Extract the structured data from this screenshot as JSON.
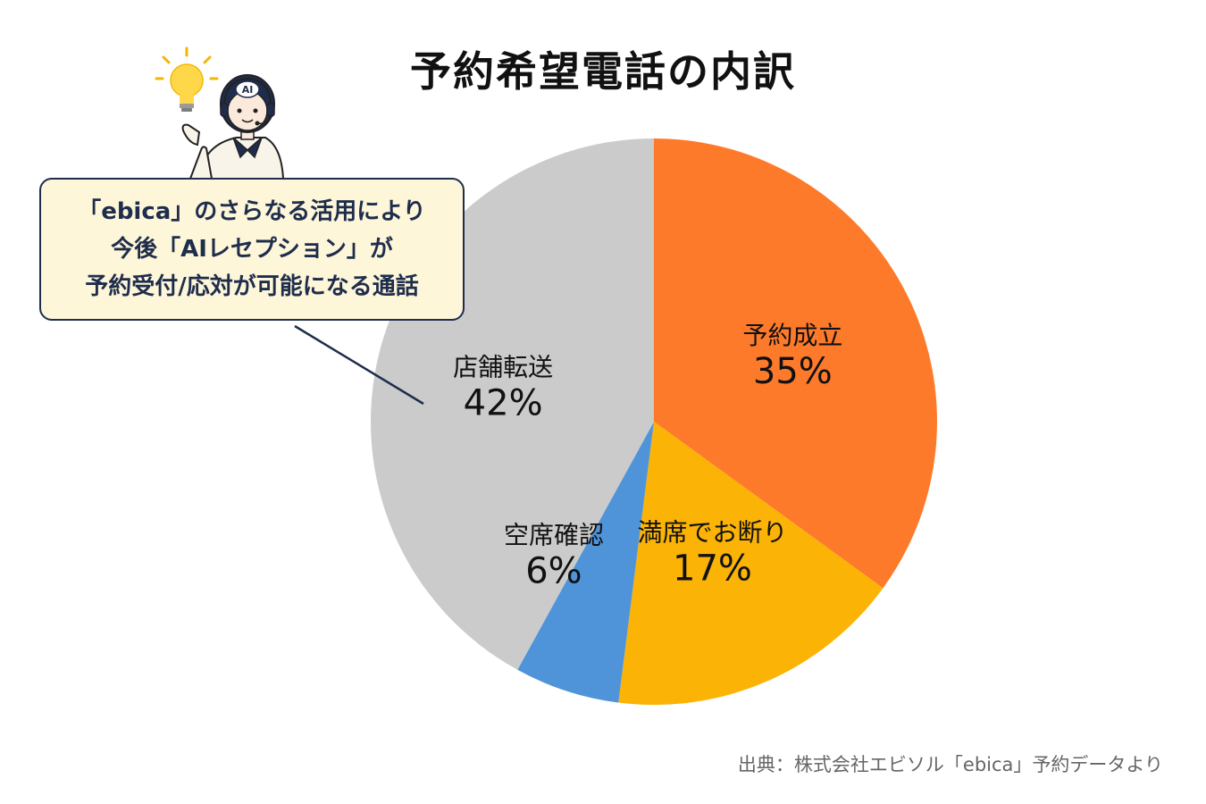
{
  "title": "予約希望電話の内訳",
  "callout": {
    "lines": [
      "「ebica」のさらなる活用により",
      "今後「AIレセプション」が",
      "予約受付/応対が可能になる通話"
    ]
  },
  "avatar": {
    "badge": "AI"
  },
  "source": "出典：株式会社エビソル「ebica」予約データより",
  "colors": {
    "reservation": "#fe7a2b",
    "full": "#fbb306",
    "confirm": "#4f94d9",
    "transfer": "#cbcbcb",
    "navy": "#1f2d4d"
  },
  "chart_data": {
    "type": "pie",
    "title": "予約希望電話の内訳",
    "slices": [
      {
        "label": "予約成立",
        "value": 35,
        "value_label": "35%",
        "color": "#fe7a2b"
      },
      {
        "label": "満席でお断り",
        "value": 17,
        "value_label": "17%",
        "color": "#fbb306"
      },
      {
        "label": "空席確認",
        "value": 6,
        "value_label": "6%",
        "color": "#4f94d9"
      },
      {
        "label": "店舗転送",
        "value": 42,
        "value_label": "42%",
        "color": "#cbcbcb"
      }
    ],
    "start": "12 o'clock",
    "direction": "clockwise"
  }
}
